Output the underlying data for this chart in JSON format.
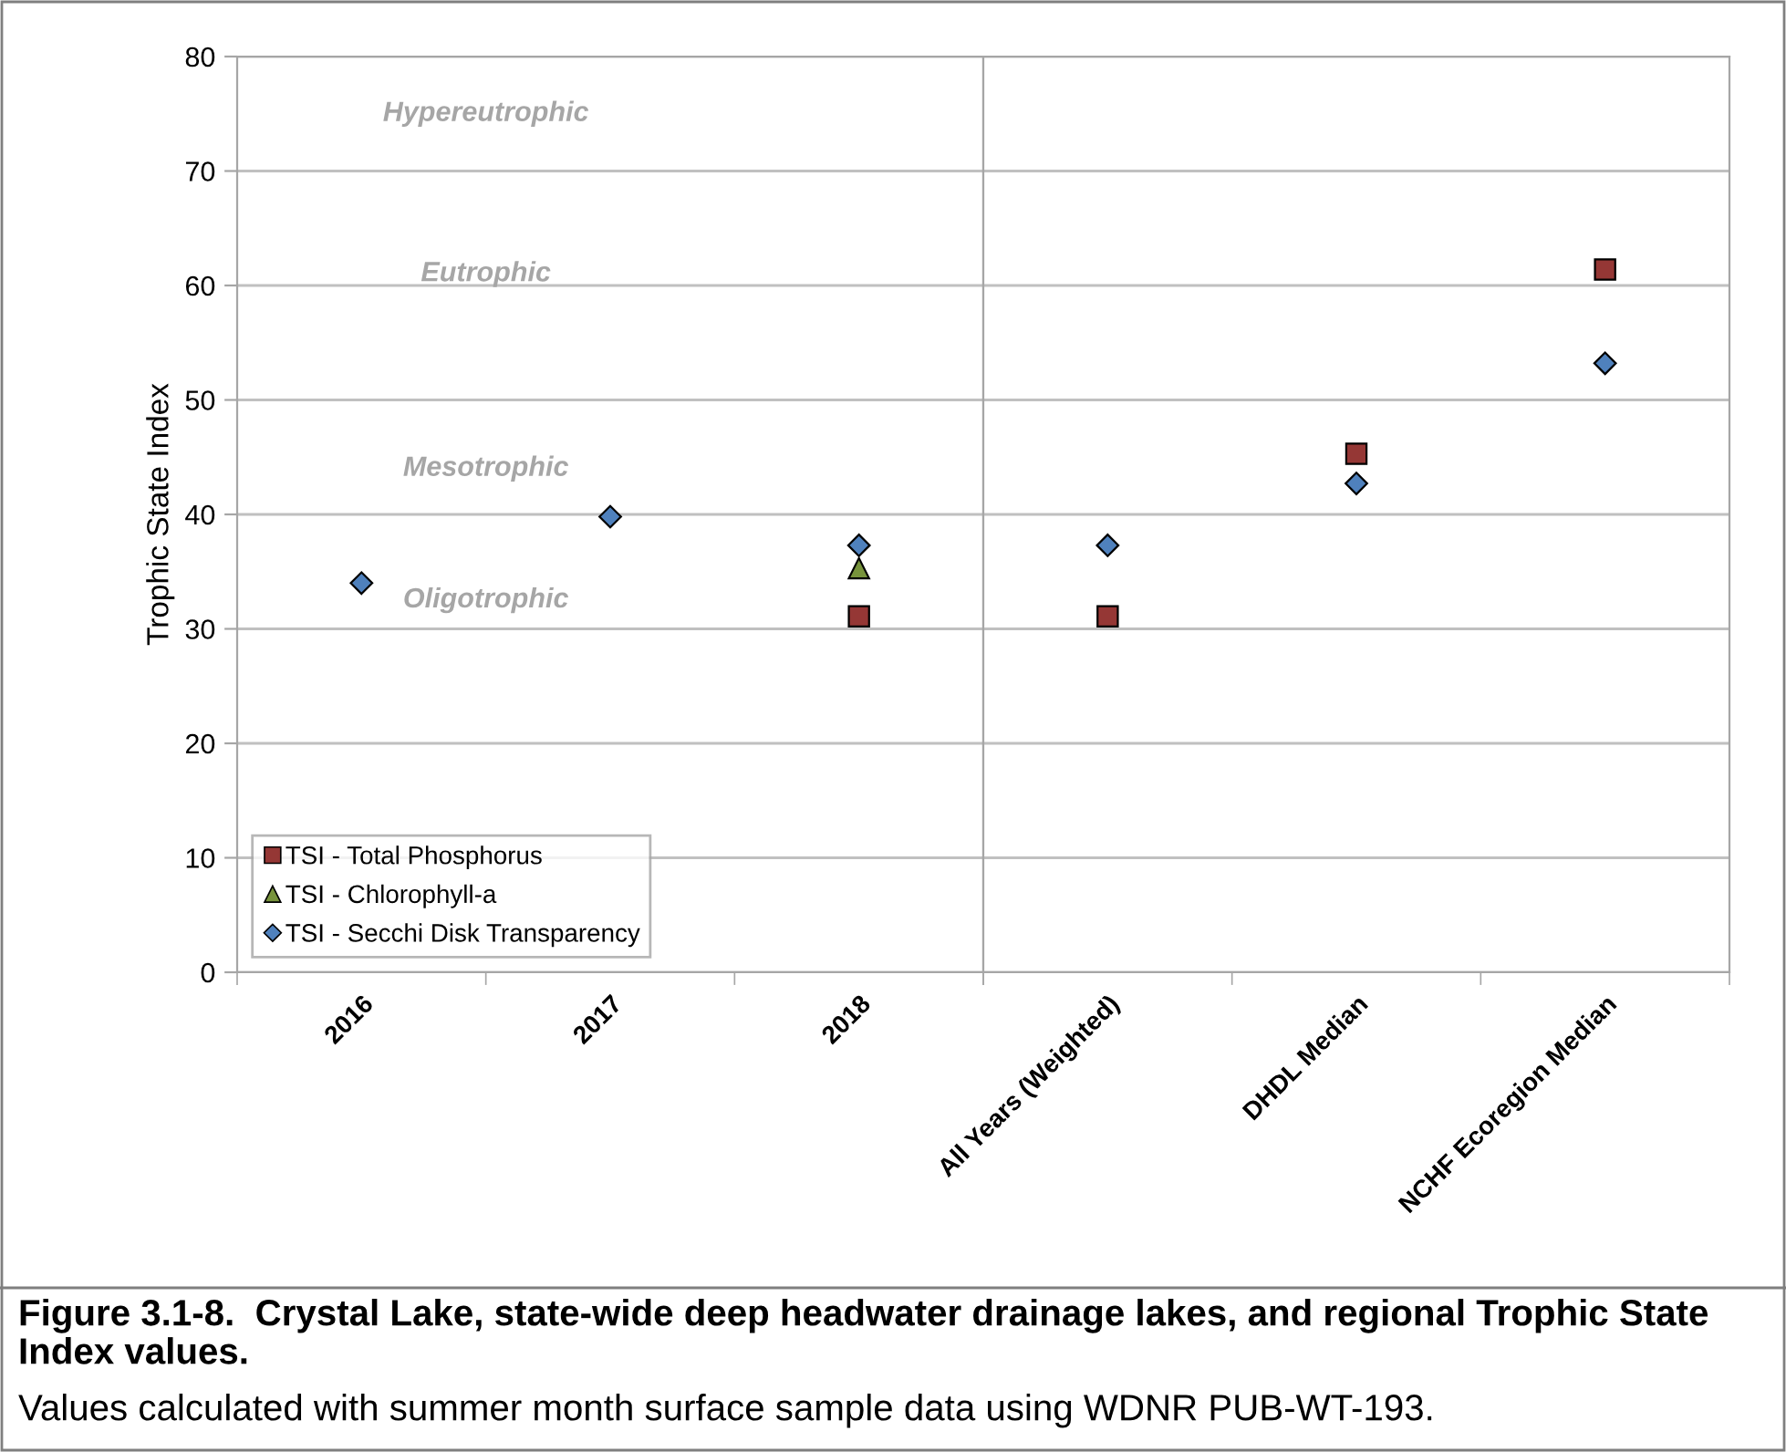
{
  "chart_data": [
    {
      "type": "scatter",
      "title": "Figure 3.1-8.  Crystal Lake, state-wide deep headwater drainage lakes, and regional Trophic State Index values.",
      "subtitle": "Values calculated with summer month surface sample data using WDNR PUB-WT-193.",
      "ylabel": "Trophic State Index",
      "categories": [
        "2016",
        "2017",
        "2018"
      ],
      "series": [
        {
          "name": "TSI - Total Phosphorus",
          "color": "#953735",
          "marker": "square",
          "values": [
            null,
            null,
            31.1
          ]
        },
        {
          "name": "TSI - Chlorophyll-a",
          "color": "#77933c",
          "marker": "triangle",
          "values": [
            null,
            null,
            35.3
          ]
        },
        {
          "name": "TSI - Secchi Disk Transparency",
          "color": "#4f81bd",
          "marker": "diamond",
          "values": [
            34.0,
            39.8,
            37.3
          ]
        }
      ],
      "annotations": [
        "Hypereutrophic",
        "Eutrophic",
        "Mesotrophic",
        "Oligotrophic"
      ],
      "ylim": [
        0,
        80
      ],
      "yticks": [
        0,
        10,
        20,
        30,
        40,
        50,
        60,
        70,
        80
      ],
      "grid": "y",
      "legend": "bottom left"
    },
    {
      "type": "scatter",
      "categories": [
        "All Years (Weighted)",
        "DHDL Median",
        "NCHF Ecoregion Median"
      ],
      "series": [
        {
          "color": "#953735",
          "marker": "square",
          "values": [
            31.1,
            45.3,
            61.4
          ]
        },
        {
          "color": "#4f81bd",
          "marker": "diamond",
          "values": [
            37.3,
            42.7,
            53.2
          ]
        }
      ],
      "ylim": [
        0,
        80
      ],
      "yticks": [
        0,
        10,
        20,
        30,
        40,
        50,
        60,
        70,
        80
      ],
      "grid": "y",
      "tick_labels": "x"
    }
  ]
}
